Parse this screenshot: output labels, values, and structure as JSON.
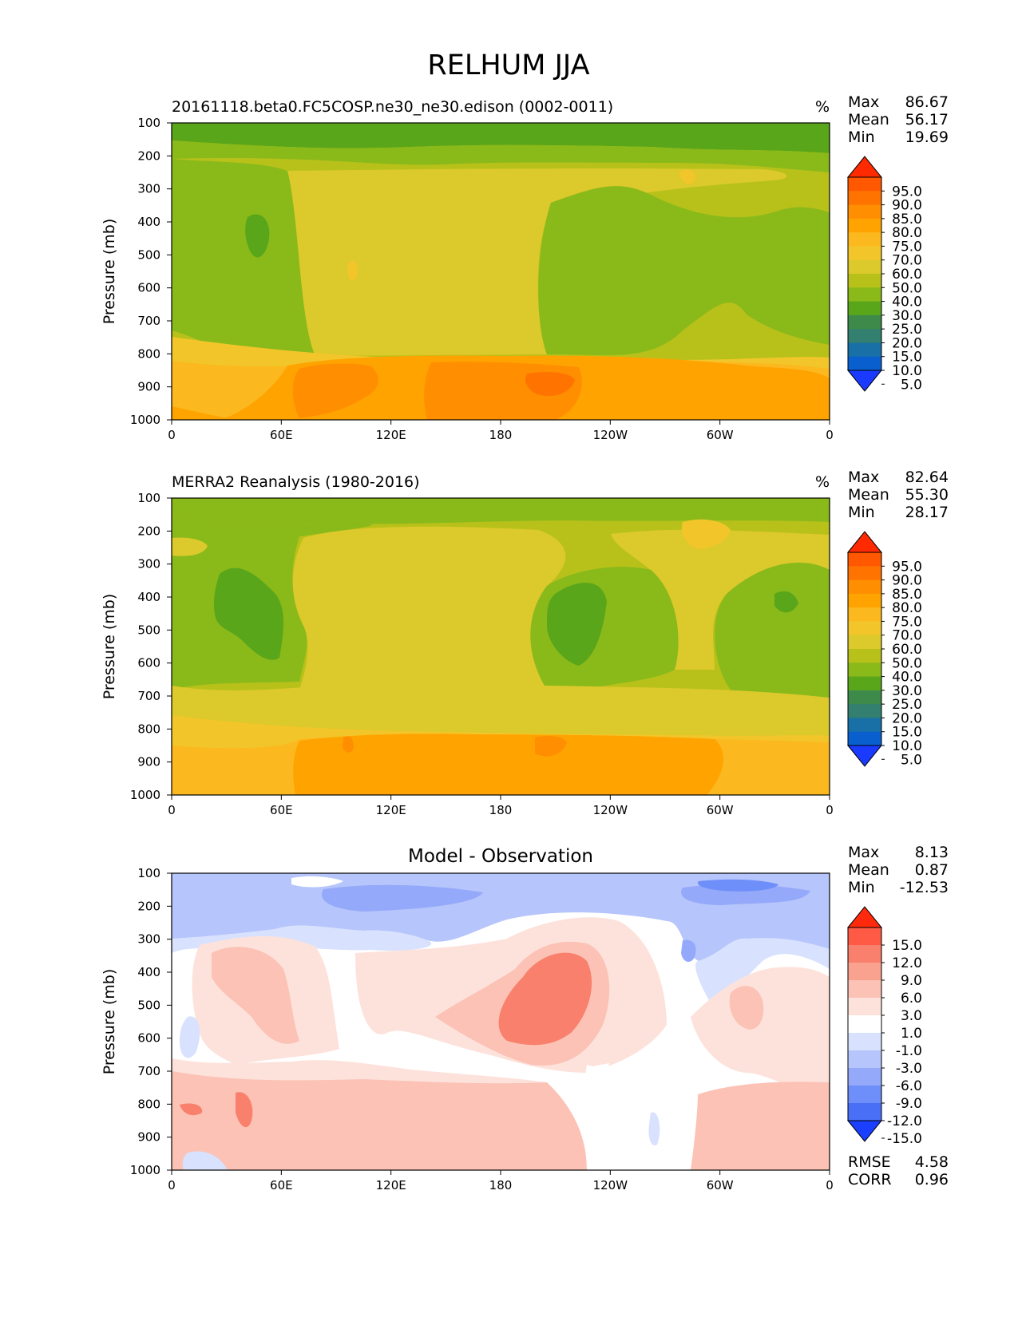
{
  "figure": {
    "title": "RELHUM JJA"
  },
  "chart_data": [
    {
      "type": "heatmap",
      "title": "20161118.beta0.FC5COSP.ne30_ne30.edison (0002-0011)",
      "units": "%",
      "ylabel": "Pressure (mb)",
      "xlabel": "",
      "x_ticks": [
        "0",
        "60E",
        "120E",
        "180",
        "120W",
        "60W",
        "0"
      ],
      "y_ticks": [
        "100",
        "200",
        "300",
        "400",
        "500",
        "600",
        "700",
        "800",
        "900",
        "1000"
      ],
      "ylim": [
        100,
        1000
      ],
      "stats": {
        "max_label": "Max",
        "max": "86.67",
        "mean_label": "Mean",
        "mean": "56.17",
        "min_label": "Min",
        "min": "19.69"
      },
      "colorbar": {
        "levels": [
          "95.0",
          "90.0",
          "85.0",
          "80.0",
          "75.0",
          "70.0",
          "60.0",
          "50.0",
          "40.0",
          "30.0",
          "25.0",
          "20.0",
          "15.0",
          "10.0",
          "5.0"
        ],
        "colors": [
          "#ff2a00",
          "#ff5800",
          "#ff7300",
          "#ff8e00",
          "#ffa300",
          "#fbb81f",
          "#f2c62a",
          "#dcc92c",
          "#b7c11a",
          "#8ab91a",
          "#5aa61a",
          "#3d8a4a",
          "#338070",
          "#1970a6",
          "#0a5fcf",
          "#1a3bff"
        ]
      }
    },
    {
      "type": "heatmap",
      "title": "MERRA2 Reanalysis (1980-2016)",
      "units": "%",
      "ylabel": "Pressure (mb)",
      "xlabel": "",
      "x_ticks": [
        "0",
        "60E",
        "120E",
        "180",
        "120W",
        "60W",
        "0"
      ],
      "y_ticks": [
        "100",
        "200",
        "300",
        "400",
        "500",
        "600",
        "700",
        "800",
        "900",
        "1000"
      ],
      "ylim": [
        100,
        1000
      ],
      "stats": {
        "max_label": "Max",
        "max": "82.64",
        "mean_label": "Mean",
        "mean": "55.30",
        "min_label": "Min",
        "min": "28.17"
      },
      "colorbar": {
        "levels": [
          "95.0",
          "90.0",
          "85.0",
          "80.0",
          "75.0",
          "70.0",
          "60.0",
          "50.0",
          "40.0",
          "30.0",
          "25.0",
          "20.0",
          "15.0",
          "10.0",
          "5.0"
        ],
        "colors": [
          "#ff2a00",
          "#ff5800",
          "#ff7300",
          "#ff8e00",
          "#ffa300",
          "#fbb81f",
          "#f2c62a",
          "#dcc92c",
          "#b7c11a",
          "#8ab91a",
          "#5aa61a",
          "#3d8a4a",
          "#338070",
          "#1970a6",
          "#0a5fcf",
          "#1a3bff"
        ]
      }
    },
    {
      "type": "heatmap",
      "title": "Model - Observation",
      "units": "",
      "ylabel": "Pressure (mb)",
      "xlabel": "",
      "x_ticks": [
        "0",
        "60E",
        "120E",
        "180",
        "120W",
        "60W",
        "0"
      ],
      "y_ticks": [
        "100",
        "200",
        "300",
        "400",
        "500",
        "600",
        "700",
        "800",
        "900",
        "1000"
      ],
      "ylim": [
        100,
        1000
      ],
      "stats": {
        "max_label": "Max",
        "max": "8.13",
        "mean_label": "Mean",
        "mean": "0.87",
        "min_label": "Min",
        "min": "-12.53"
      },
      "metrics": {
        "rmse_label": "RMSE",
        "rmse": "4.58",
        "corr_label": "CORR",
        "corr": "0.96"
      },
      "colorbar": {
        "levels": [
          "15.0",
          "12.0",
          "9.0",
          "6.0",
          "3.0",
          "1.0",
          "-1.0",
          "-3.0",
          "-6.0",
          "-9.0",
          "-12.0",
          "-15.0"
        ],
        "colors": [
          "#ff2a0d",
          "#fe5a45",
          "#f8806c",
          "#f9a28f",
          "#fbc2b5",
          "#fde2db",
          "#ffffff",
          "#d8e1fd",
          "#b6c5fb",
          "#94a9fa",
          "#6e8ef9",
          "#4a6ff7",
          "#1a3fff"
        ]
      }
    }
  ]
}
